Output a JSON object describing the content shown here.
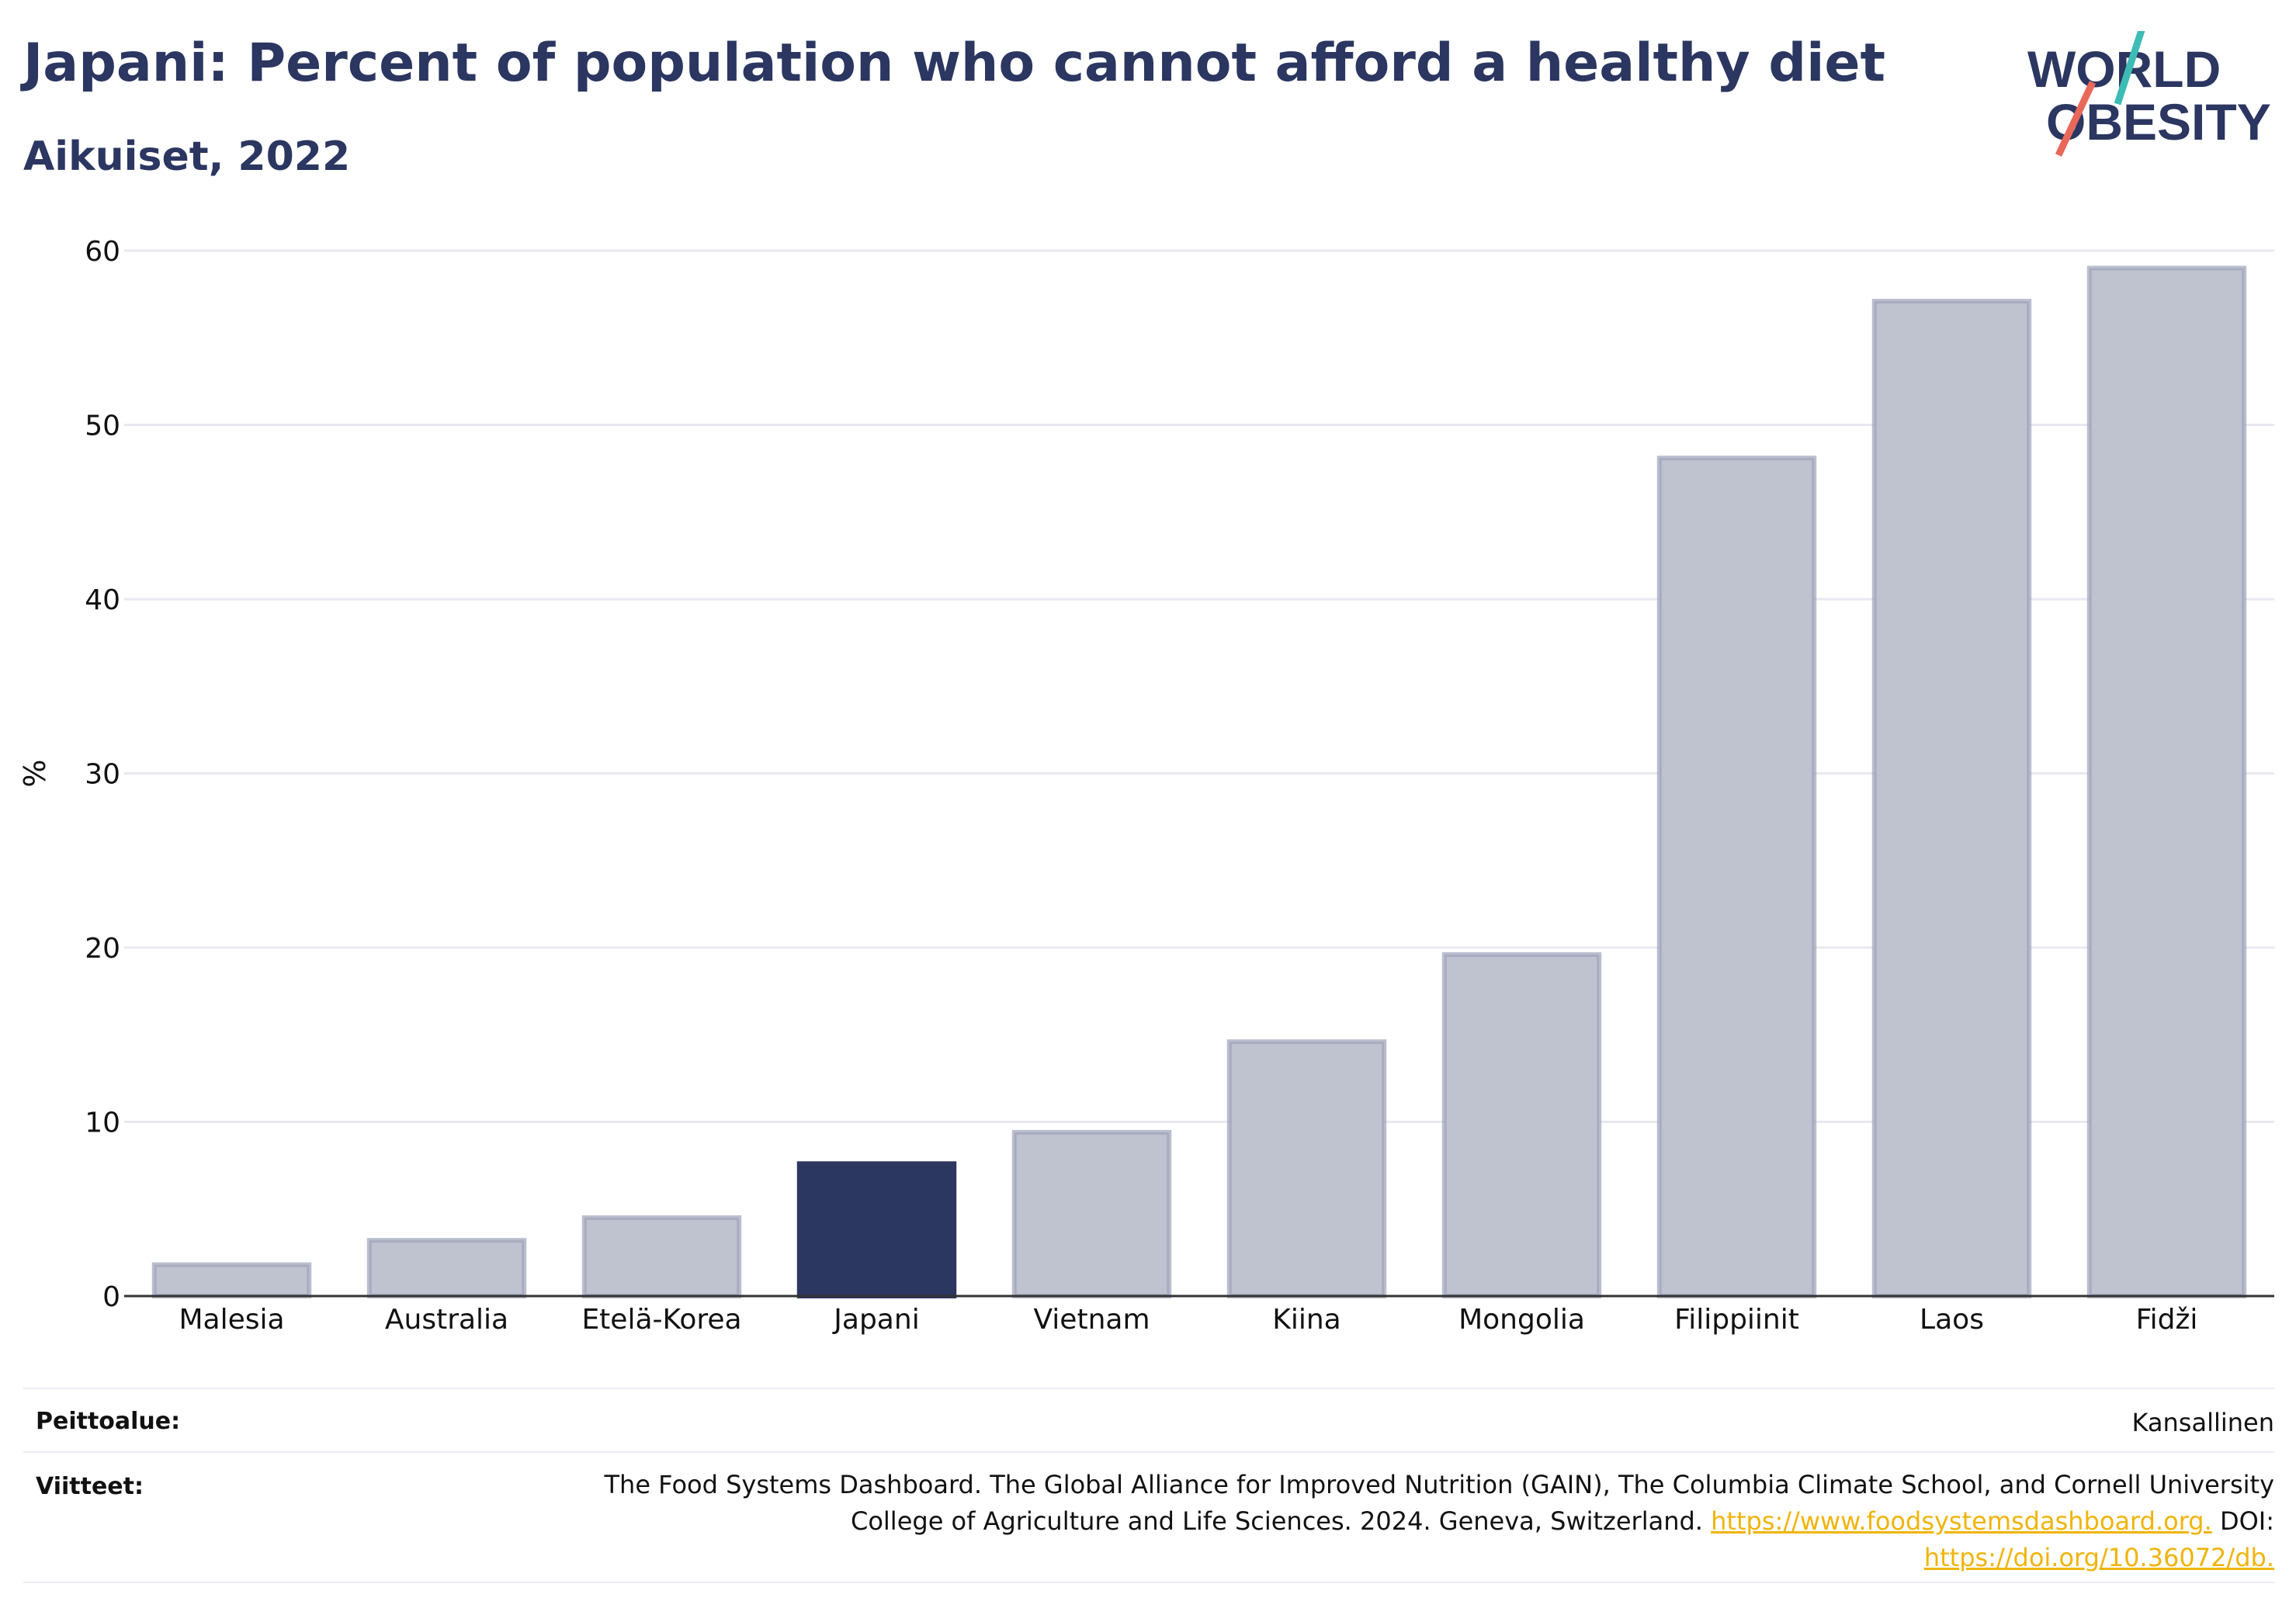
{
  "header": {
    "title": "Japani: Percent of population who cannot afford a healthy diet",
    "subtitle": "Aikuiset, 2022"
  },
  "logo": {
    "line1": "WORLD",
    "line2": "OBESITY",
    "text_color": "#2b3661",
    "accent_teal": "#3cbcb4",
    "accent_red": "#e8695a"
  },
  "chart_data": {
    "type": "bar",
    "title": "Japani: Percent of population who cannot afford a healthy diet",
    "subtitle": "Aikuiset, 2022",
    "xlabel": "",
    "ylabel": "%",
    "ylim": [
      0,
      60
    ],
    "yticks": [
      0,
      10,
      20,
      30,
      40,
      50,
      60
    ],
    "grid": true,
    "categories": [
      "Malesia",
      "Australia",
      "Etelä-Korea",
      "Japani",
      "Vietnam",
      "Kiina",
      "Mongolia",
      "Filippiinit",
      "Laos",
      "Fidži"
    ],
    "values": [
      1.8,
      3.2,
      4.5,
      7.6,
      9.4,
      14.6,
      19.6,
      48.1,
      57.1,
      59.0
    ],
    "highlight": "Japani",
    "colors": {
      "bar": "#bfc2cf",
      "bar_border": "#9ea3b9",
      "highlight": "#2b3661",
      "grid": "#e8e9f0",
      "axis": "#333333"
    }
  },
  "footer": {
    "coverage_label": "Peittoalue:",
    "coverage_value": "Kansallinen",
    "refs_label": "Viitteet:",
    "refs_line1": "The Food Systems Dashboard. The Global Alliance for Improved Nutrition (GAIN), The Columbia Climate School, and Cornell University",
    "refs_line2": "College of Agriculture and Life Sciences. 2024. Geneva, Switzerland.",
    "refs_link1": "https://www.foodsystemsdashboard.org.",
    "refs_doi": "DOI:",
    "refs_link2": "https://doi.org/10.36072/db.",
    "link_color": "#f0b40a"
  }
}
